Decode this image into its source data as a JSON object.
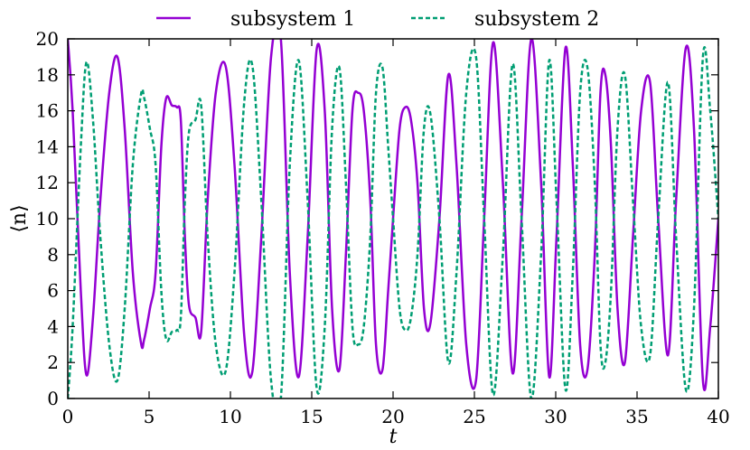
{
  "chart_data": {
    "type": "line",
    "xlabel": "t",
    "ylabel": "⟨n⟩",
    "xlim": [
      0,
      40
    ],
    "ylim": [
      0,
      20
    ],
    "x_ticks": [
      "0",
      "5",
      "10",
      "15",
      "20",
      "25",
      "30",
      "35",
      "40"
    ],
    "y_ticks": [
      "0",
      "2",
      "4",
      "6",
      "8",
      "10",
      "12",
      "14",
      "16",
      "18",
      "20"
    ],
    "grid": false,
    "legend_position": "top",
    "series": [
      {
        "name": "subsystem 1",
        "color": "#9400d3",
        "dash": "solid",
        "x": [
          0,
          0.3,
          0.8,
          1.15,
          1.55,
          2,
          2.55,
          3.05,
          3.5,
          4,
          4.5,
          4.7,
          5.05,
          5.4,
          5.75,
          6.05,
          6.4,
          6.7,
          6.95,
          7.2,
          7.45,
          7.85,
          8.2,
          8.6,
          9.1,
          9.7,
          10.25,
          10.85,
          11.35,
          11.9,
          12.5,
          13.1,
          13.65,
          14.2,
          14.75,
          15.3,
          15.8,
          16.25,
          16.7,
          17.1,
          17.5,
          17.85,
          18.2,
          18.6,
          18.95,
          19.35,
          19.7,
          20,
          20.4,
          20.75,
          21.1,
          21.5,
          21.9,
          22.3,
          22.85,
          23.4,
          23.9,
          24.5,
          25.1,
          25.6,
          26.15,
          26.75,
          27.35,
          27.9,
          28.5,
          29.1,
          29.6,
          30.05,
          30.6,
          31.05,
          31.5,
          31.95,
          32.4,
          32.75,
          33.05,
          33.4,
          33.8,
          34.25,
          34.75,
          35.25,
          35.8,
          36.3,
          36.9,
          37.4,
          38,
          38.5,
          39.05,
          39.5,
          40
        ],
        "y": [
          20,
          16,
          6,
          1.3,
          4.5,
          11,
          17,
          19,
          15,
          7,
          3.1,
          3.3,
          5,
          7,
          14,
          16.7,
          16.3,
          16.2,
          15.5,
          9,
          5.2,
          4.5,
          3.7,
          11,
          17,
          18.5,
          13,
          3.5,
          1.5,
          9,
          19,
          20,
          7,
          1.2,
          9,
          19.4,
          16,
          5,
          1.6,
          8,
          16,
          17,
          16,
          11,
          3,
          1.6,
          6,
          10,
          15,
          16.2,
          15.5,
          12,
          5,
          4.2,
          10,
          18,
          13,
          3,
          1,
          10,
          19.8,
          12,
          1.4,
          10,
          20,
          12,
          1.2,
          9,
          19.5,
          13,
          3,
          1.6,
          8,
          17,
          18,
          14,
          5,
          2,
          9,
          16,
          17.6,
          10,
          2.4,
          11,
          19.5,
          15,
          1,
          4,
          10
        ]
      },
      {
        "name": "subsystem 2",
        "color": "#009e73",
        "dash": "dashed",
        "x": [
          0,
          0.3,
          0.8,
          1.15,
          1.55,
          2,
          2.55,
          3.05,
          3.5,
          4,
          4.5,
          4.7,
          5.05,
          5.4,
          5.75,
          6.05,
          6.4,
          6.7,
          6.95,
          7.2,
          7.45,
          7.85,
          8.2,
          8.6,
          9.1,
          9.7,
          10.25,
          10.85,
          11.35,
          11.9,
          12.5,
          13.1,
          13.65,
          14.2,
          14.75,
          15.3,
          15.8,
          16.25,
          16.7,
          17.1,
          17.5,
          17.85,
          18.2,
          18.6,
          18.95,
          19.35,
          19.7,
          20,
          20.4,
          20.75,
          21.1,
          21.5,
          21.9,
          22.3,
          22.85,
          23.4,
          23.9,
          24.5,
          25.1,
          25.6,
          26.15,
          26.75,
          27.35,
          27.9,
          28.5,
          29.1,
          29.6,
          30.05,
          30.6,
          31.05,
          31.5,
          31.95,
          32.4,
          32.75,
          33.05,
          33.4,
          33.8,
          34.25,
          34.75,
          35.25,
          35.8,
          36.3,
          36.9,
          37.4,
          38,
          38.5,
          39.05,
          39.5,
          40
        ],
        "y": [
          0,
          4,
          14,
          18.7,
          15.5,
          9,
          3,
          1,
          5,
          13,
          16.9,
          16.7,
          15,
          13,
          6,
          3.3,
          3.7,
          3.8,
          4.5,
          11,
          14.8,
          15.5,
          16.3,
          9,
          3,
          1.5,
          7,
          16.5,
          18.5,
          11,
          1,
          0,
          13,
          18.8,
          11,
          0.6,
          4,
          15,
          18.4,
          12,
          4,
          3,
          4,
          9,
          17,
          18.4,
          14,
          10,
          5,
          3.8,
          4.5,
          8,
          15,
          15.8,
          10,
          2,
          7,
          17,
          19,
          10,
          0.2,
          8,
          18.6,
          10,
          0,
          8,
          18.8,
          11,
          0.5,
          7,
          17,
          18.4,
          12,
          3,
          2,
          6,
          15,
          18,
          11,
          4,
          2.4,
          10,
          17.6,
          9,
          0.5,
          5,
          19,
          16,
          10
        ]
      }
    ]
  }
}
